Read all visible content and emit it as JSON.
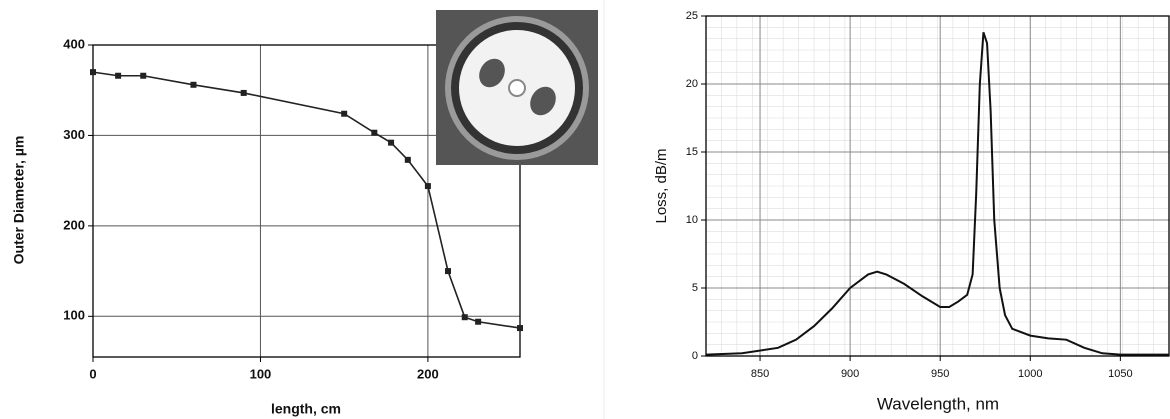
{
  "chart_data": [
    {
      "type": "line",
      "x_label": "length, cm",
      "y_label": "Outer Diameter, µm",
      "x": [
        0,
        15,
        30,
        60,
        90,
        150,
        168,
        178,
        188,
        200,
        212,
        222,
        230,
        255
      ],
      "series": [
        {
          "color": "#222222",
          "marker": "square",
          "values": [
            370,
            366,
            366,
            356,
            347,
            324,
            303,
            292,
            273,
            244,
            150,
            99,
            94,
            87
          ]
        }
      ],
      "xlim": [
        0,
        255
      ],
      "ylim": [
        55,
        400
      ],
      "xticks": [
        0,
        100,
        200
      ],
      "yticks": [
        100,
        200,
        300,
        400
      ],
      "grid": true
    },
    {
      "type": "line",
      "x_label": "Wavelength, nm",
      "y_label": "Loss, dB/m",
      "x": [
        820,
        840,
        860,
        870,
        880,
        890,
        900,
        910,
        915,
        920,
        930,
        940,
        950,
        955,
        960,
        965,
        968,
        970,
        972,
        974,
        976,
        978,
        980,
        983,
        986,
        990,
        1000,
        1010,
        1020,
        1030,
        1040,
        1050,
        1077
      ],
      "series": [
        {
          "color": "#111111",
          "values": [
            0.1,
            0.2,
            0.6,
            1.2,
            2.2,
            3.5,
            5,
            6,
            6.2,
            6,
            5.3,
            4.4,
            3.6,
            3.6,
            4,
            4.5,
            6,
            12,
            20,
            23.8,
            23,
            18,
            10,
            5,
            3,
            2,
            1.5,
            1.3,
            1.2,
            0.6,
            0.2,
            0.1,
            0.1
          ]
        }
      ],
      "xlim": [
        820,
        1077
      ],
      "ylim": [
        0,
        25
      ],
      "xticks": [
        850,
        900,
        950,
        1000,
        1050
      ],
      "yticks": [
        0,
        5,
        10,
        15,
        20,
        25
      ],
      "grid": true
    }
  ]
}
